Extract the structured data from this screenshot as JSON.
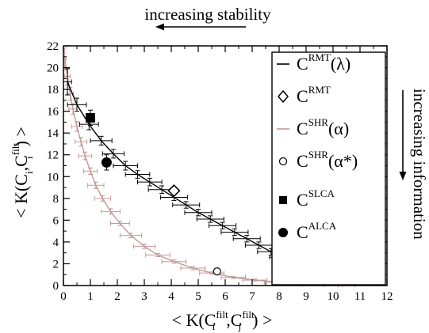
{
  "chart_data": {
    "type": "scatter",
    "title": "",
    "grid": false,
    "legend_position": "top-right",
    "xlim": [
      0,
      12
    ],
    "ylim": [
      0,
      22
    ],
    "x_ticks": [
      "0",
      "1",
      "2",
      "3",
      "4",
      "5",
      "6",
      "7",
      "8",
      "9",
      "10",
      "11",
      "12"
    ],
    "y_ticks": [
      "0",
      "2",
      "4",
      "6",
      "8",
      "10",
      "12",
      "14",
      "16",
      "18",
      "20",
      "22"
    ],
    "xlabel": {
      "open": "< K(C",
      "sup1": "filt",
      "sub1": "i",
      "mid": ",C",
      "sup2": "filt",
      "sub2": "j",
      "close": ") >"
    },
    "ylabel": {
      "open": "< K(C",
      "sub1": "i",
      "mid": ",C",
      "sup": "filt",
      "sub2": "i",
      "close": ") >"
    },
    "annotations": {
      "top": "increasing stability",
      "right": "increasing information"
    },
    "colors": {
      "rmt": "#000000",
      "shr": "#c49a98"
    },
    "series": [
      {
        "name": "C^RMT(λ)",
        "legend": {
          "base": "C",
          "sup": "RMT",
          "arg": "(λ)"
        },
        "style": "line-with-errorbars",
        "color": "#000000",
        "x": [
          0.15,
          0.5,
          0.95,
          1.4,
          1.85,
          2.3,
          2.75,
          3.2,
          3.65,
          4.1,
          4.55,
          5.0,
          5.45,
          5.9,
          6.35,
          6.8,
          7.25,
          7.7,
          8.15,
          8.6,
          9.05,
          9.5,
          9.95,
          10.4,
          10.85,
          11.2
        ],
        "y": [
          18.7,
          16.6,
          14.8,
          13.3,
          12.1,
          11.0,
          10.2,
          9.5,
          8.8,
          8.1,
          7.4,
          6.7,
          6.1,
          5.5,
          4.9,
          4.3,
          3.7,
          3.1,
          2.6,
          2.1,
          1.6,
          1.1,
          0.8,
          0.5,
          0.3,
          0.2
        ],
        "xerr": [
          0.15,
          0.35,
          0.35,
          0.4,
          0.4,
          0.45,
          0.45,
          0.45,
          0.5,
          0.5,
          0.5,
          0.5,
          0.5,
          0.5,
          0.5,
          0.5,
          0.5,
          0.5,
          0.5,
          0.5,
          0.5,
          0.5,
          0.5,
          0.45,
          0.4,
          0.3
        ],
        "yerr": [
          1.2,
          0.6,
          0.5,
          0.4,
          0.4,
          0.4,
          0.35,
          0.35,
          0.35,
          0.3,
          0.3,
          0.3,
          0.3,
          0.3,
          0.3,
          0.3,
          0.3,
          0.3,
          0.3,
          0.3,
          0.3,
          0.3,
          0.25,
          0.25,
          0.2,
          0.2
        ]
      },
      {
        "name": "C^RMT",
        "legend": {
          "base": "C",
          "sup": "RMT",
          "arg": ""
        },
        "style": "open-diamond",
        "color": "#000000",
        "x": [
          4.1
        ],
        "y": [
          8.7
        ]
      },
      {
        "name": "C^SHR(α)",
        "legend": {
          "base": "C",
          "sup": "SHR",
          "arg": "(α)"
        },
        "style": "line-with-errorbars",
        "color": "#c49a98",
        "x": [
          0.05,
          0.15,
          0.25,
          0.35,
          0.5,
          0.65,
          0.8,
          1.0,
          1.2,
          1.45,
          1.75,
          2.1,
          2.5,
          3.0,
          3.5,
          4.1,
          4.8,
          5.5,
          6.3,
          7.1,
          7.9,
          8.6,
          9.3,
          10.0,
          10.5
        ],
        "y": [
          20.8,
          19.2,
          17.6,
          16.2,
          14.6,
          13.2,
          11.9,
          10.5,
          9.2,
          8.0,
          6.8,
          5.7,
          4.6,
          3.6,
          2.8,
          2.2,
          1.6,
          1.15,
          0.75,
          0.5,
          0.32,
          0.2,
          0.12,
          0.07,
          0.04
        ],
        "xerr": [
          0.05,
          0.1,
          0.12,
          0.15,
          0.2,
          0.22,
          0.25,
          0.25,
          0.3,
          0.3,
          0.35,
          0.35,
          0.4,
          0.4,
          0.45,
          0.45,
          0.45,
          0.45,
          0.45,
          0.45,
          0.45,
          0.4,
          0.4,
          0.35,
          0.3
        ],
        "yerr": [
          1.0,
          0.8,
          0.6,
          0.5,
          0.45,
          0.4,
          0.35,
          0.3,
          0.3,
          0.25,
          0.25,
          0.2,
          0.2,
          0.2,
          0.15,
          0.15,
          0.15,
          0.1,
          0.1,
          0.1,
          0.08,
          0.06,
          0.05,
          0.04,
          0.03
        ]
      },
      {
        "name": "C^SHR(α*)",
        "legend": {
          "base": "C",
          "sup": "SHR",
          "arg": "(α*)"
        },
        "style": "open-circle",
        "color": "#000000",
        "x": [
          5.7
        ],
        "y": [
          1.3
        ]
      },
      {
        "name": "C^SLCA",
        "legend": {
          "base": "C",
          "sup": "SLCA",
          "arg": ""
        },
        "style": "filled-square",
        "color": "#000000",
        "x": [
          1.0
        ],
        "y": [
          15.4
        ],
        "xerr": [
          0.15
        ],
        "yerr": [
          0.7
        ]
      },
      {
        "name": "C^ALCA",
        "legend": {
          "base": "C",
          "sup": "ALCA",
          "arg": ""
        },
        "style": "filled-circle",
        "color": "#000000",
        "x": [
          1.6
        ],
        "y": [
          11.3
        ],
        "xerr": [
          0.15
        ],
        "yerr": [
          0.7
        ]
      }
    ]
  }
}
